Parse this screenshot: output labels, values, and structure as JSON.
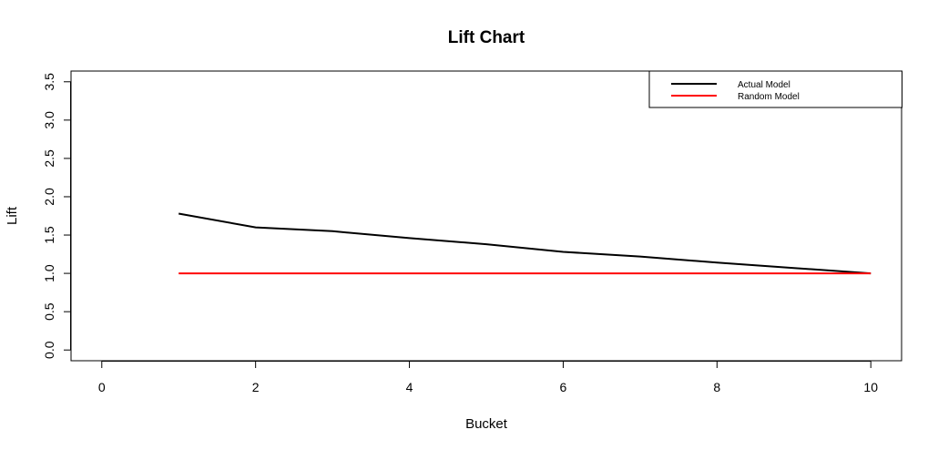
{
  "chart_data": {
    "type": "line",
    "title": "Lift Chart",
    "xlabel": "Bucket",
    "ylabel": "Lift",
    "xlim": [
      -0.4,
      10.4
    ],
    "ylim": [
      -0.14,
      3.64
    ],
    "xticks": [
      0,
      2,
      4,
      6,
      8,
      10
    ],
    "yticks": [
      0.0,
      0.5,
      1.0,
      1.5,
      2.0,
      2.5,
      3.0,
      3.5
    ],
    "ytick_labels": [
      "0.0",
      "0.5",
      "1.0",
      "1.5",
      "2.0",
      "2.5",
      "3.0",
      "3.5"
    ],
    "x": [
      1,
      2,
      3,
      4,
      5,
      6,
      7,
      8,
      9,
      10
    ],
    "series": [
      {
        "name": "Actual Model",
        "color": "#000000",
        "values": [
          1.78,
          1.6,
          1.55,
          1.46,
          1.38,
          1.28,
          1.22,
          1.14,
          1.07,
          1.0
        ]
      },
      {
        "name": "Random Model",
        "color": "#ff0000",
        "values": [
          1.0,
          1.0,
          1.0,
          1.0,
          1.0,
          1.0,
          1.0,
          1.0,
          1.0,
          1.0
        ]
      }
    ],
    "legend": "top-right",
    "grid": false
  }
}
